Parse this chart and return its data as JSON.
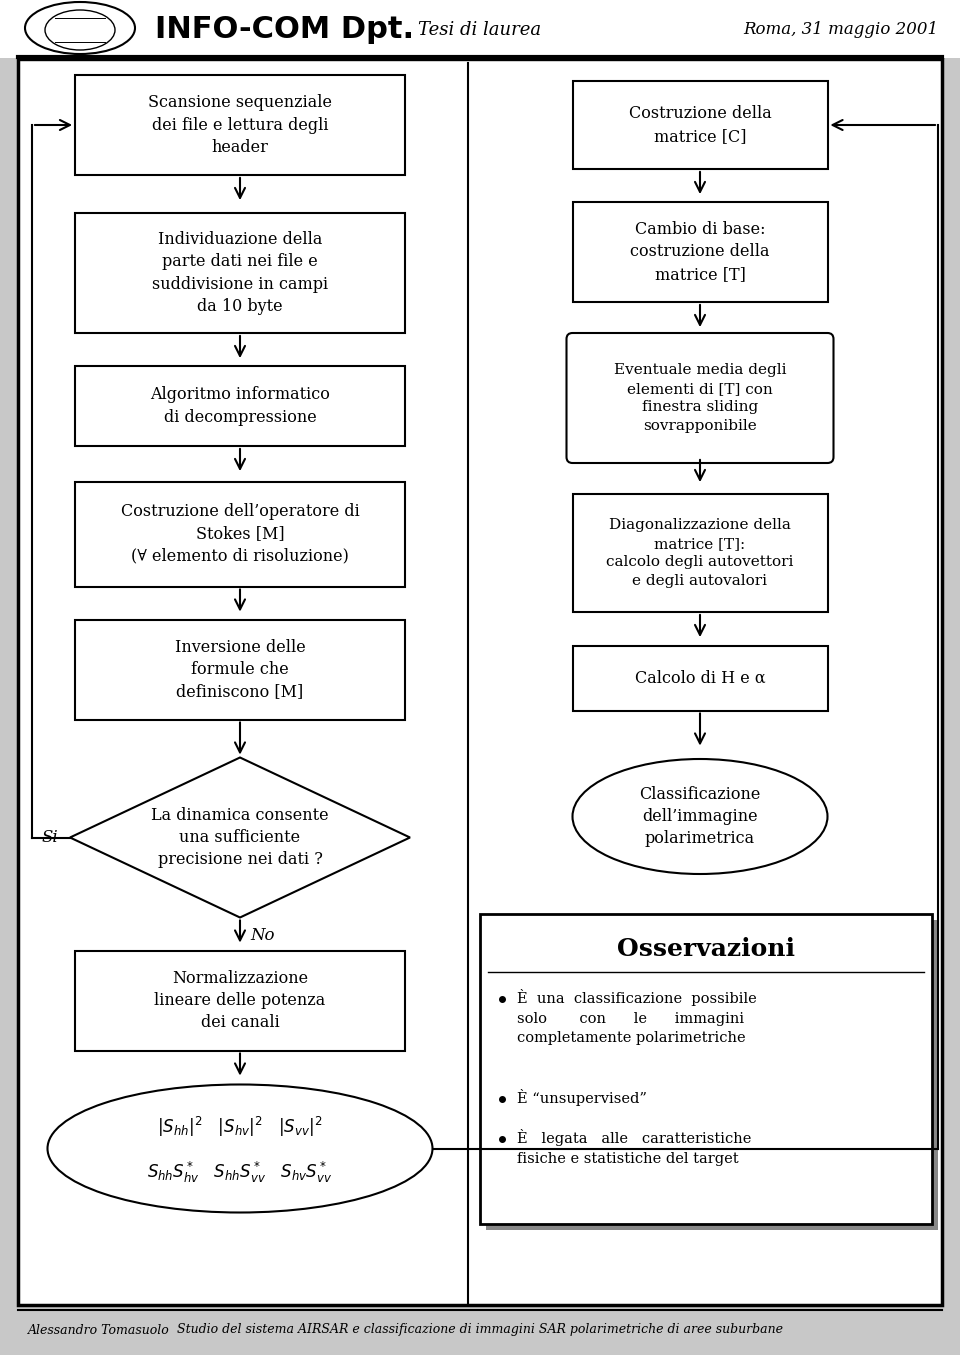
{
  "header_title": "INFO-COM Dpt.",
  "header_center": "Tesi di laurea",
  "header_right": "Roma, 31 maggio 2001",
  "footer_left": "Alessandro Tomasuolo",
  "footer_right": "Studio del sistema AIRSAR e classificazione di immagini SAR polarimetriche di aree suburbane",
  "bg_color": "#c8c8c8",
  "main_bg": "#ffffff",
  "obs_title": "Osservazioni",
  "obs_bullet1": "È  una  classificazione  possibile\nsolo       con      le      immagini\ncompletamente polarimetriche",
  "obs_bullet2": "È “unsupervised”",
  "obs_bullet3": "È   legata   alle   caratteristiche\nfisiche e statistiche del target"
}
